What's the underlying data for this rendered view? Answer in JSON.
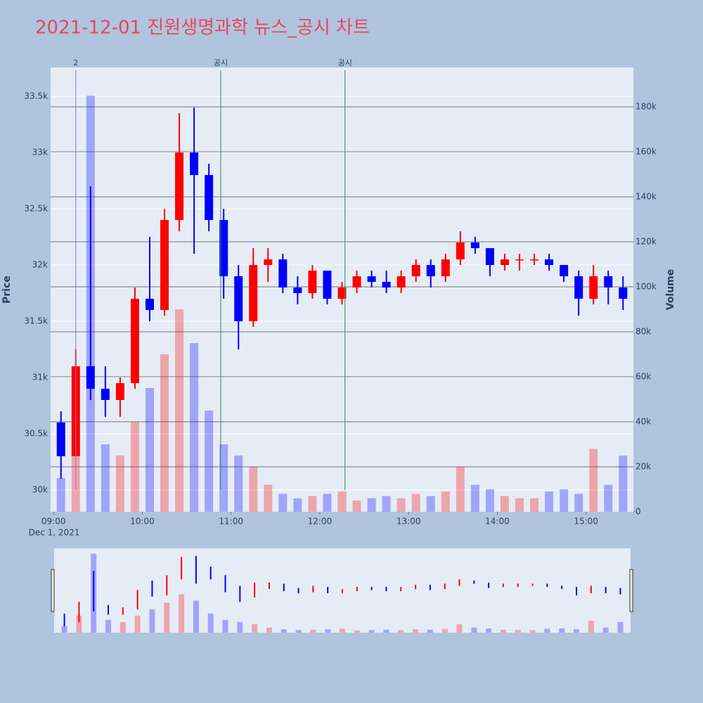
{
  "chart_data": {
    "type": "candlestick",
    "title": "2021-12-01 진원생명과학 뉴스_공시 차트",
    "y_title": "Price",
    "y2_title": "Volume",
    "x_date": "Dec 1, 2021",
    "x": [
      "09:00",
      "09:10",
      "09:20",
      "09:30",
      "09:40",
      "09:50",
      "10:00",
      "10:10",
      "10:20",
      "10:30",
      "10:40",
      "10:50",
      "11:00",
      "11:10",
      "11:20",
      "11:30",
      "11:40",
      "11:50",
      "12:00",
      "12:10",
      "12:20",
      "12:30",
      "12:40",
      "12:50",
      "13:00",
      "13:10",
      "13:20",
      "13:30",
      "13:40",
      "13:50",
      "14:00",
      "14:10",
      "14:20",
      "14:30",
      "14:40",
      "14:50",
      "15:00",
      "15:10",
      "15:20"
    ],
    "open": [
      30600,
      30300,
      31100,
      30900,
      30800,
      30950,
      31700,
      31600,
      32400,
      33000,
      32800,
      32400,
      31900,
      31500,
      32000,
      32050,
      31800,
      31750,
      31950,
      31700,
      31800,
      31900,
      31850,
      31800,
      31900,
      32000,
      31900,
      32050,
      32200,
      32150,
      32000,
      32050,
      32050,
      32050,
      32000,
      31900,
      31700,
      31900,
      31800
    ],
    "high": [
      30700,
      31250,
      32700,
      31100,
      31000,
      31800,
      32250,
      32500,
      33350,
      33400,
      32900,
      32500,
      32000,
      32150,
      32150,
      32100,
      31900,
      32000,
      31950,
      31850,
      31950,
      31950,
      31950,
      31950,
      32050,
      32050,
      32100,
      32300,
      32250,
      32150,
      32100,
      32100,
      32100,
      32100,
      32000,
      31950,
      32000,
      31950,
      31900
    ],
    "low": [
      30100,
      30300,
      30800,
      30650,
      30650,
      30900,
      31500,
      31550,
      32300,
      32100,
      32300,
      31700,
      31250,
      31450,
      31850,
      31750,
      31650,
      31700,
      31650,
      31650,
      31750,
      31800,
      31750,
      31750,
      31850,
      31800,
      31850,
      32000,
      32100,
      31900,
      31950,
      31950,
      32000,
      31950,
      31850,
      31550,
      31650,
      31650,
      31600
    ],
    "close": [
      30300,
      31100,
      30900,
      30800,
      30950,
      31700,
      31600,
      32400,
      33000,
      32800,
      32400,
      31900,
      31500,
      32000,
      32050,
      31800,
      31750,
      31950,
      31700,
      31800,
      31900,
      31850,
      31800,
      31900,
      32000,
      31900,
      32050,
      32200,
      32150,
      32000,
      32050,
      32050,
      32050,
      32000,
      31900,
      31700,
      31900,
      31800,
      31700
    ],
    "volume": [
      15000,
      40000,
      185000,
      30000,
      25000,
      40000,
      55000,
      70000,
      90000,
      75000,
      45000,
      30000,
      25000,
      20000,
      12000,
      8000,
      6000,
      7000,
      8000,
      9000,
      5000,
      6000,
      7000,
      6000,
      8000,
      7000,
      9000,
      20000,
      12000,
      10000,
      7000,
      6000,
      6000,
      9000,
      10000,
      8000,
      28000,
      12000,
      25000
    ],
    "up_color": "#ff0000",
    "down_color": "#0000ff",
    "xlim": [
      "08:58",
      "15:32"
    ],
    "xticks": [
      "09:00",
      "10:00",
      "11:00",
      "12:00",
      "13:00",
      "14:00",
      "15:00"
    ],
    "ylim": [
      29806,
      33756
    ],
    "yticks": [
      {
        "value": 30000,
        "label": "30k"
      },
      {
        "value": 30500,
        "label": "30.5k"
      },
      {
        "value": 31000,
        "label": "31k"
      },
      {
        "value": 31500,
        "label": "31.5k"
      },
      {
        "value": 32000,
        "label": "32k"
      },
      {
        "value": 32500,
        "label": "32.5k"
      },
      {
        "value": 33000,
        "label": "33k"
      },
      {
        "value": 33500,
        "label": "33.5k"
      }
    ],
    "y2lim": [
      0,
      197500
    ],
    "y2ticks": [
      0,
      {
        "value": 20000,
        "label": "20k"
      },
      {
        "value": 40000,
        "label": "40k"
      },
      {
        "value": 60000,
        "label": "60k"
      },
      {
        "value": 80000,
        "label": "80k"
      },
      {
        "value": 100000,
        "label": "100k"
      },
      {
        "value": 120000,
        "label": "120k"
      },
      {
        "value": 140000,
        "label": "140k"
      },
      {
        "value": 160000,
        "label": "160k"
      },
      {
        "value": 180000,
        "label": "180k"
      }
    ],
    "annotations": [
      {
        "x": "09:15",
        "text": "2",
        "color": "#9370db"
      },
      {
        "x": "10:53",
        "text": "공시",
        "color": "#2e8b57"
      },
      {
        "x": "12:17",
        "text": "공시",
        "color": "#2e8b57"
      }
    ]
  }
}
